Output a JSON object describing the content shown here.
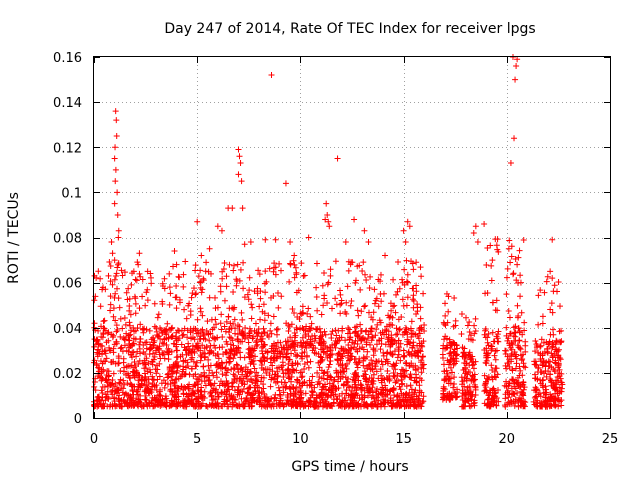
{
  "chart_data": {
    "type": "scatter",
    "title": "Day 247 of 2014, Rate Of TEC Index for receiver lpgs",
    "xlabel": "GPS time / hours",
    "ylabel": "ROTI / TECUs",
    "xlim": [
      0,
      25
    ],
    "ylim": [
      0,
      0.16
    ],
    "grid": true,
    "marker": "+",
    "color": "#ff0000",
    "x_ticks": [
      0,
      5,
      10,
      15,
      20,
      25
    ],
    "x_tick_labels": [
      "0",
      "5",
      "10",
      "15",
      "20",
      "25"
    ],
    "y_ticks": [
      0,
      0.02,
      0.04,
      0.06,
      0.08,
      0.1,
      0.12,
      0.14,
      0.16
    ],
    "y_tick_labels": [
      "0",
      "0.02",
      "0.04",
      "0.06",
      "0.08",
      "0.1",
      "0.12",
      "0.14",
      "0.16"
    ],
    "data_gaps_hours": [
      [
        16.0,
        16.9
      ],
      [
        17.6,
        17.8
      ],
      [
        18.5,
        18.9
      ],
      [
        19.6,
        19.9
      ],
      [
        20.9,
        21.3
      ],
      [
        22.7,
        25.0
      ]
    ],
    "density_segments": [
      {
        "x": [
          0.0,
          16.0
        ],
        "typical": [
          0.005,
          0.04
        ],
        "upper": 0.07
      },
      {
        "x": [
          16.9,
          17.6
        ],
        "typical": [
          0.008,
          0.035
        ],
        "upper": 0.055
      },
      {
        "x": [
          17.8,
          18.5
        ],
        "typical": [
          0.005,
          0.03
        ],
        "upper": 0.05
      },
      {
        "x": [
          18.9,
          19.6
        ],
        "typical": [
          0.005,
          0.04
        ],
        "upper": 0.08
      },
      {
        "x": [
          19.9,
          20.9
        ],
        "typical": [
          0.005,
          0.04
        ],
        "upper": 0.08
      },
      {
        "x": [
          21.3,
          22.7
        ],
        "typical": [
          0.005,
          0.035
        ],
        "upper": 0.065
      }
    ],
    "points": [
      [
        1.05,
        0.136
      ],
      [
        1.08,
        0.132
      ],
      [
        1.1,
        0.125
      ],
      [
        1.02,
        0.12
      ],
      [
        1.0,
        0.115
      ],
      [
        1.06,
        0.11
      ],
      [
        1.03,
        0.105
      ],
      [
        1.12,
        0.1
      ],
      [
        1.0,
        0.095
      ],
      [
        1.15,
        0.09
      ],
      [
        1.2,
        0.083
      ],
      [
        1.18,
        0.08
      ],
      [
        0.85,
        0.078
      ],
      [
        0.9,
        0.073
      ],
      [
        1.0,
        0.07
      ],
      [
        2.2,
        0.073
      ],
      [
        2.6,
        0.065
      ],
      [
        3.9,
        0.074
      ],
      [
        4.0,
        0.068
      ],
      [
        5.0,
        0.087
      ],
      [
        5.2,
        0.072
      ],
      [
        5.6,
        0.075
      ],
      [
        6.0,
        0.085
      ],
      [
        6.2,
        0.083
      ],
      [
        6.5,
        0.093
      ],
      [
        6.7,
        0.093
      ],
      [
        7.0,
        0.119
      ],
      [
        7.05,
        0.116
      ],
      [
        7.1,
        0.113
      ],
      [
        7.0,
        0.108
      ],
      [
        7.15,
        0.105
      ],
      [
        7.2,
        0.093
      ],
      [
        7.3,
        0.077
      ],
      [
        7.6,
        0.078
      ],
      [
        8.3,
        0.079
      ],
      [
        8.6,
        0.152
      ],
      [
        8.8,
        0.079
      ],
      [
        9.3,
        0.104
      ],
      [
        9.5,
        0.078
      ],
      [
        9.7,
        0.072
      ],
      [
        10.4,
        0.08
      ],
      [
        11.2,
        0.088
      ],
      [
        11.3,
        0.09
      ],
      [
        11.25,
        0.095
      ],
      [
        11.35,
        0.087
      ],
      [
        11.4,
        0.085
      ],
      [
        11.8,
        0.115
      ],
      [
        12.2,
        0.078
      ],
      [
        12.6,
        0.088
      ],
      [
        13.1,
        0.083
      ],
      [
        13.3,
        0.078
      ],
      [
        14.1,
        0.072
      ],
      [
        15.0,
        0.083
      ],
      [
        15.2,
        0.087
      ],
      [
        15.3,
        0.085
      ],
      [
        15.1,
        0.078
      ],
      [
        17.1,
        0.055
      ],
      [
        18.5,
        0.085
      ],
      [
        18.4,
        0.082
      ],
      [
        18.6,
        0.078
      ],
      [
        18.9,
        0.086
      ],
      [
        19.3,
        0.07
      ],
      [
        20.2,
        0.113
      ],
      [
        20.35,
        0.124
      ],
      [
        20.4,
        0.15
      ],
      [
        20.45,
        0.156
      ],
      [
        20.5,
        0.159
      ],
      [
        20.3,
        0.16
      ],
      [
        20.1,
        0.075
      ],
      [
        20.5,
        0.068
      ],
      [
        22.2,
        0.079
      ],
      [
        22.1,
        0.065
      ],
      [
        22.2,
        0.062
      ]
    ]
  }
}
